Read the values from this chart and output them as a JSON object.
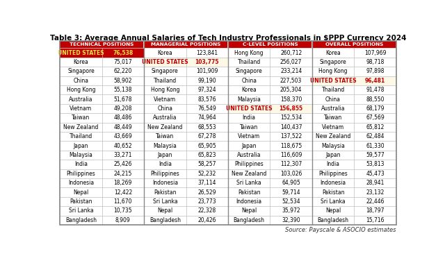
{
  "title": "Table 3: Average Annual Salaries of Tech Industry Professionals in $PPP Currency 2024",
  "source": "Source: Payscale & ASOCIO estimates",
  "col_headers": [
    "TECHNICAL POSITIONS",
    "MANAGERIAL POSITIONS",
    "C-LEVEL POSITIONS",
    "OVERALL POSITIONS"
  ],
  "header_bg": "#c00000",
  "header_fg": "#ffffff",
  "highlight_yellow": "#fef9e7",
  "highlight_red_text": "#c00000",
  "rows": [
    [
      "UNITED STATES",
      "76,538",
      "Korea",
      "123,841",
      "Hong Kong",
      "260,712",
      "Korea",
      "107,969"
    ],
    [
      "Korea",
      "75,017",
      "UNITED STATES",
      "103,775",
      "Thailand",
      "256,027",
      "Singapore",
      "98,718"
    ],
    [
      "Singapore",
      "62,220",
      "Singapore",
      "101,909",
      "Singapore",
      "233,214",
      "Hong Kong",
      "97,898"
    ],
    [
      "China",
      "58,902",
      "Thailand",
      "99,190",
      "China",
      "227,503",
      "UNITED STATES",
      "96,481"
    ],
    [
      "Hong Kong",
      "55,138",
      "Hong Kong",
      "97,324",
      "Korea",
      "205,304",
      "Thailand",
      "91,478"
    ],
    [
      "Australia",
      "51,678",
      "Vietnam",
      "83,576",
      "Malaysia",
      "158,370",
      "China",
      "88,550"
    ],
    [
      "Vietnam",
      "49,208",
      "China",
      "76,549",
      "UNITED STATES",
      "156,855",
      "Australia",
      "68,179"
    ],
    [
      "Taiwan",
      "48,486",
      "Australia",
      "74,964",
      "India",
      "152,534",
      "Taiwan",
      "67,569"
    ],
    [
      "New Zealand",
      "48,449",
      "New Zealand",
      "68,553",
      "Taiwan",
      "140,437",
      "Vietnam",
      "65,812"
    ],
    [
      "Thailand",
      "43,669",
      "Taiwan",
      "67,278",
      "Vietnam",
      "137,522",
      "New Zealand",
      "62,484"
    ],
    [
      "Japan",
      "40,652",
      "Malaysia",
      "65,905",
      "Japan",
      "118,675",
      "Malaysia",
      "61,330"
    ],
    [
      "Malaysia",
      "33,271",
      "Japan",
      "65,823",
      "Australia",
      "116,609",
      "Japan",
      "59,577"
    ],
    [
      "India",
      "25,426",
      "India",
      "58,257",
      "Philippines",
      "112,307",
      "India",
      "53,813"
    ],
    [
      "Philippines",
      "24,215",
      "Philippines",
      "52,232",
      "New Zealand",
      "103,026",
      "Philippines",
      "45,473"
    ],
    [
      "Indonesia",
      "18,269",
      "Indonesia",
      "37,114",
      "Sri Lanka",
      "64,905",
      "Indonesia",
      "28,941"
    ],
    [
      "Nepal",
      "12,422",
      "Pakistan",
      "26,529",
      "Pakistan",
      "59,714",
      "Pakistan",
      "23,132"
    ],
    [
      "Pakistan",
      "11,670",
      "Sri Lanka",
      "23,773",
      "Indonesia",
      "52,534",
      "Sri Lanka",
      "22,446"
    ],
    [
      "Sri Lanka",
      "10,735",
      "Nepal",
      "22,328",
      "Nepal",
      "35,972",
      "Nepal",
      "18,797"
    ],
    [
      "Bangladesh",
      "8,909",
      "Bangladesh",
      "20,426",
      "Bangladesh",
      "32,390",
      "Bangladesh",
      "15,716"
    ]
  ],
  "row0_bg": "#c00000",
  "row0_fg": "#f5e642",
  "figsize": [
    6.4,
    3.92
  ],
  "dpi": 100
}
